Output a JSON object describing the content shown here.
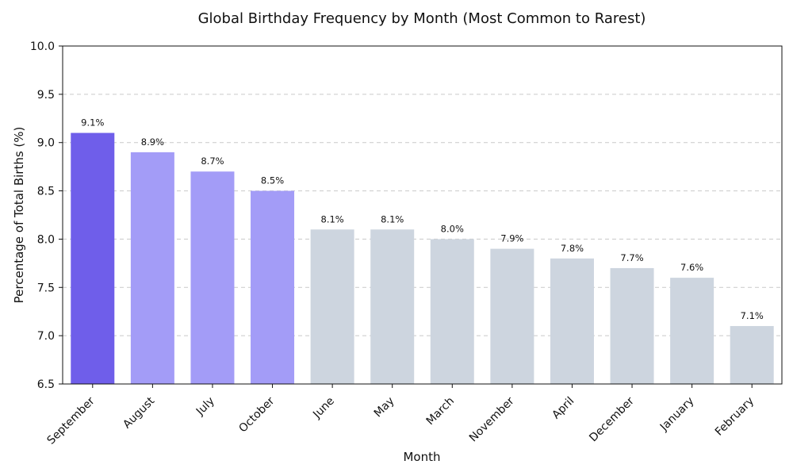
{
  "chart_data": {
    "type": "bar",
    "title": "Global Birthday Frequency by Month (Most Common to Rarest)",
    "xlabel": "Month",
    "ylabel": "Percentage of Total Births (%)",
    "categories": [
      "September",
      "August",
      "July",
      "October",
      "June",
      "May",
      "March",
      "November",
      "April",
      "December",
      "January",
      "February"
    ],
    "values": [
      9.1,
      8.9,
      8.7,
      8.5,
      8.1,
      8.1,
      8.0,
      7.9,
      7.8,
      7.7,
      7.6,
      7.1
    ],
    "data_labels": [
      "9.1%",
      "8.9%",
      "8.7%",
      "8.5%",
      "8.1%",
      "8.1%",
      "8.0%",
      "7.9%",
      "7.8%",
      "7.7%",
      "7.6%",
      "7.1%"
    ],
    "ylim": [
      6.5,
      10.0
    ],
    "yticks": [
      "6.5",
      "7.0",
      "7.5",
      "8.0",
      "8.5",
      "9.0",
      "9.5",
      "10.0"
    ],
    "grid": true,
    "bar_colors": [
      "#6f5eea",
      "#a39cf7",
      "#a39cf7",
      "#a39cf7",
      "#cdd5df",
      "#cdd5df",
      "#cdd5df",
      "#cdd5df",
      "#cdd5df",
      "#cdd5df",
      "#cdd5df",
      "#cdd5df"
    ]
  }
}
